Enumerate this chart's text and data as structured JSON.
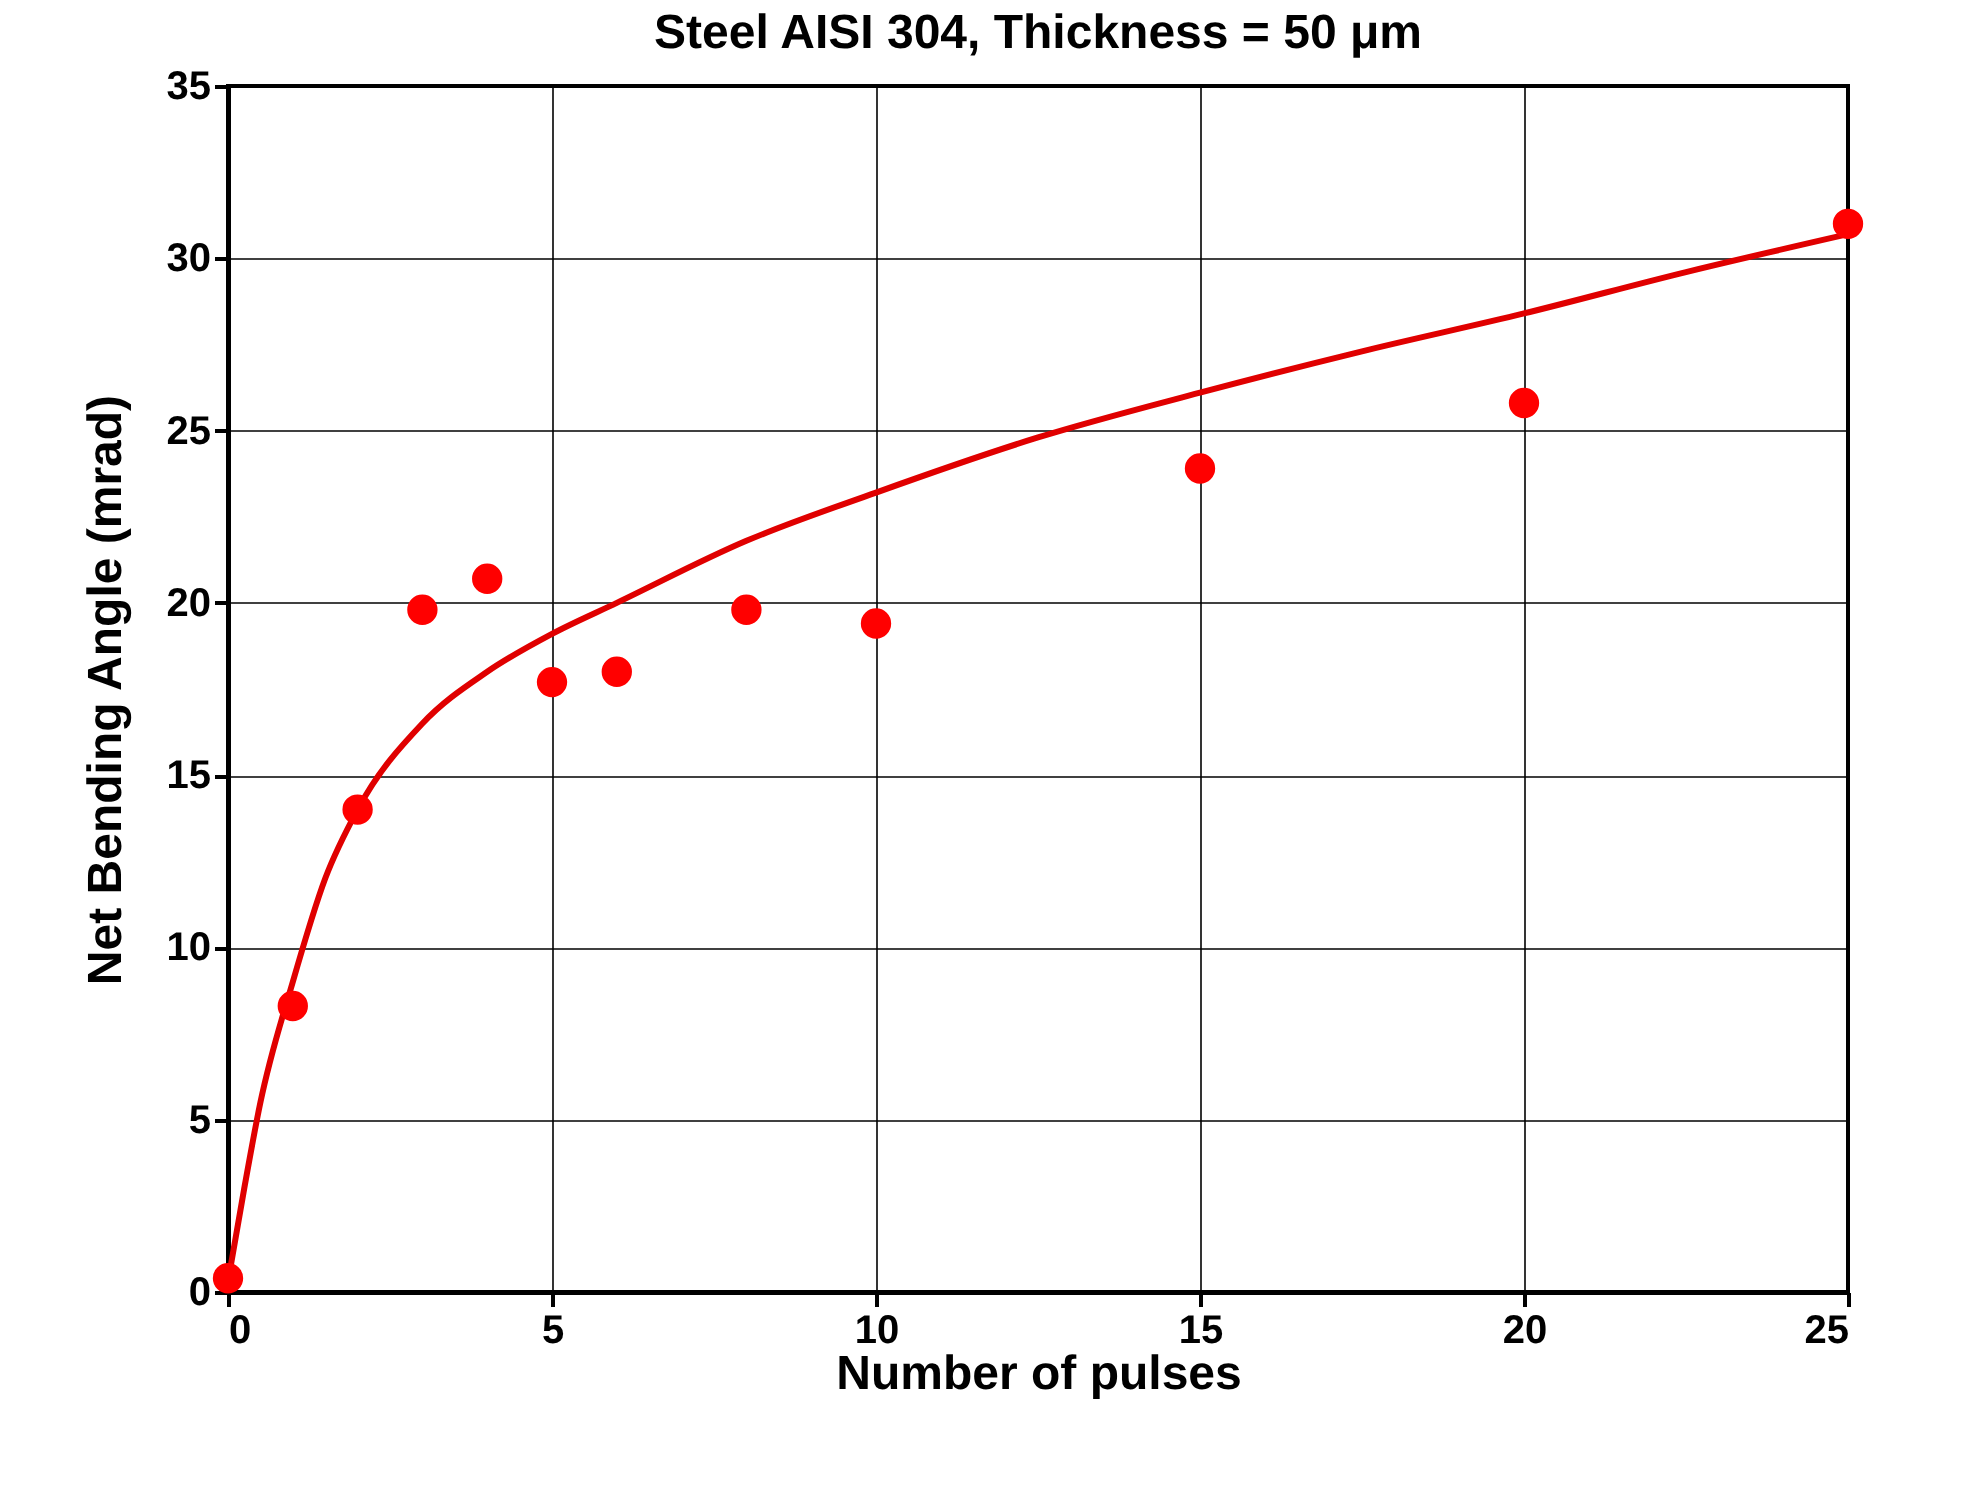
{
  "chart_data": {
    "type": "scatter",
    "title": "Steel AISI 304, Thickness = 50 μm",
    "xlabel": "Number of pulses",
    "ylabel": "Net Bending Angle (mrad)",
    "x": [
      0,
      1,
      2,
      3,
      4,
      5,
      6,
      8,
      10,
      15,
      20,
      25
    ],
    "series": [
      {
        "color": "#ff0000",
        "marker": "circle",
        "values": [
          0.4,
          8.3,
          14.0,
          19.8,
          20.7,
          17.7,
          18.0,
          19.8,
          19.4,
          23.9,
          25.8,
          31.0
        ]
      },
      {
        "type": "line",
        "color": "#e00000",
        "line_style": "solid",
        "marker": "none",
        "x": [
          0,
          0.25,
          0.5,
          1,
          1.5,
          2,
          3,
          4,
          5,
          6,
          8,
          10,
          12.5,
          15,
          17.5,
          20,
          22.5,
          25
        ],
        "values": [
          0.3,
          3,
          5.5,
          9.0,
          12.0,
          14.0,
          16.5,
          18.0,
          19.1,
          20.0,
          21.8,
          23.2,
          24.8,
          26.1,
          27.3,
          28.4,
          29.6,
          30.7
        ]
      }
    ],
    "xlim": [
      0,
      25
    ],
    "xticks": [
      0,
      5,
      10,
      15,
      20,
      25
    ],
    "ylim": [
      0,
      35
    ],
    "yticks": [
      0,
      5,
      10,
      15,
      20,
      25,
      30,
      35
    ],
    "grid": true
  }
}
